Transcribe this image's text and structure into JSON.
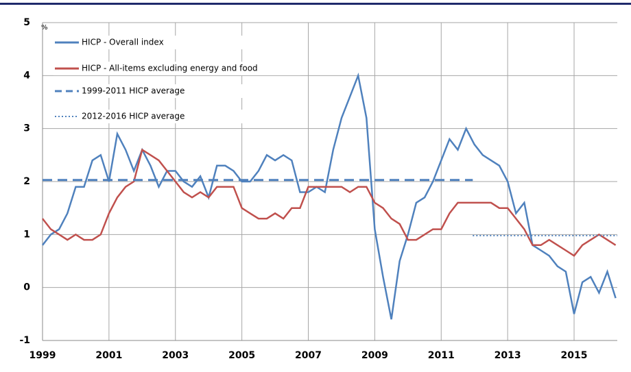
{
  "chart_data": {
    "type": "line",
    "y_label": "%",
    "xlim": [
      1999,
      2016.3
    ],
    "xticks": [
      1999,
      2001,
      2003,
      2005,
      2007,
      2009,
      2011,
      2013,
      2015
    ],
    "ylim": [
      -1,
      5
    ],
    "yticks": [
      -1,
      0,
      1,
      2,
      3,
      4,
      5
    ],
    "grid": true,
    "legend": "upper left",
    "series": [
      {
        "name": "HICP - Overall index",
        "color": "#4f81bd",
        "style": "solid",
        "x": [
          1999,
          1999.25,
          1999.5,
          1999.75,
          2000,
          2000.25,
          2000.5,
          2000.75,
          2001,
          2001.25,
          2001.5,
          2001.75,
          2002,
          2002.25,
          2002.5,
          2002.75,
          2003,
          2003.25,
          2003.5,
          2003.75,
          2004,
          2004.25,
          2004.5,
          2004.75,
          2005,
          2005.25,
          2005.5,
          2005.75,
          2006,
          2006.25,
          2006.5,
          2006.75,
          2007,
          2007.25,
          2007.5,
          2007.75,
          2008,
          2008.25,
          2008.5,
          2008.75,
          2009,
          2009.25,
          2009.5,
          2009.75,
          2010,
          2010.25,
          2010.5,
          2010.75,
          2011,
          2011.25,
          2011.5,
          2011.75,
          2012,
          2012.25,
          2012.5,
          2012.75,
          2013,
          2013.25,
          2013.5,
          2013.75,
          2014,
          2014.25,
          2014.5,
          2014.75,
          2015,
          2015.25,
          2015.5,
          2015.75,
          2016,
          2016.25
        ],
        "values": [
          0.8,
          1.0,
          1.1,
          1.4,
          1.9,
          1.9,
          2.4,
          2.5,
          2.0,
          2.9,
          2.6,
          2.2,
          2.6,
          2.3,
          1.9,
          2.2,
          2.2,
          2.0,
          1.9,
          2.1,
          1.7,
          2.3,
          2.3,
          2.2,
          2.0,
          2.0,
          2.2,
          2.5,
          2.4,
          2.5,
          2.4,
          1.8,
          1.8,
          1.9,
          1.8,
          2.6,
          3.2,
          3.6,
          4.0,
          3.2,
          1.1,
          0.2,
          -0.6,
          0.5,
          1.0,
          1.6,
          1.7,
          2.0,
          2.4,
          2.8,
          2.6,
          3.0,
          2.7,
          2.5,
          2.4,
          2.3,
          2.0,
          1.4,
          1.6,
          0.8,
          0.7,
          0.6,
          0.4,
          0.3,
          -0.5,
          0.1,
          0.2,
          -0.1,
          0.3,
          -0.2
        ]
      },
      {
        "name": "HICP - All-items excluding energy and food",
        "color": "#c0504d",
        "style": "solid",
        "x": [
          1999,
          1999.25,
          1999.5,
          1999.75,
          2000,
          2000.25,
          2000.5,
          2000.75,
          2001,
          2001.25,
          2001.5,
          2001.75,
          2002,
          2002.25,
          2002.5,
          2002.75,
          2003,
          2003.25,
          2003.5,
          2003.75,
          2004,
          2004.25,
          2004.5,
          2004.75,
          2005,
          2005.25,
          2005.5,
          2005.75,
          2006,
          2006.25,
          2006.5,
          2006.75,
          2007,
          2007.25,
          2007.5,
          2007.75,
          2008,
          2008.25,
          2008.5,
          2008.75,
          2009,
          2009.25,
          2009.5,
          2009.75,
          2010,
          2010.25,
          2010.5,
          2010.75,
          2011,
          2011.25,
          2011.5,
          2011.75,
          2012,
          2012.25,
          2012.5,
          2012.75,
          2013,
          2013.25,
          2013.5,
          2013.75,
          2014,
          2014.25,
          2014.5,
          2014.75,
          2015,
          2015.25,
          2015.5,
          2015.75,
          2016,
          2016.25
        ],
        "values": [
          1.3,
          1.1,
          1.0,
          0.9,
          1.0,
          0.9,
          0.9,
          1.0,
          1.4,
          1.7,
          1.9,
          2.0,
          2.6,
          2.5,
          2.4,
          2.2,
          2.0,
          1.8,
          1.7,
          1.8,
          1.7,
          1.9,
          1.9,
          1.9,
          1.5,
          1.4,
          1.3,
          1.3,
          1.4,
          1.3,
          1.5,
          1.5,
          1.9,
          1.9,
          1.9,
          1.9,
          1.9,
          1.8,
          1.9,
          1.9,
          1.6,
          1.5,
          1.3,
          1.2,
          0.9,
          0.9,
          1.0,
          1.1,
          1.1,
          1.4,
          1.6,
          1.6,
          1.6,
          1.6,
          1.6,
          1.5,
          1.5,
          1.3,
          1.1,
          0.8,
          0.8,
          0.9,
          0.8,
          0.7,
          0.6,
          0.8,
          0.9,
          1.0,
          0.9,
          0.8
        ]
      },
      {
        "name": "1999-2011 HICP average",
        "color": "#4f81bd",
        "style": "dashed",
        "x": [
          1999,
          2011.95
        ],
        "values": [
          2.03,
          2.03
        ]
      },
      {
        "name": "2012-2016 HICP average",
        "color": "#4f81bd",
        "style": "dotted",
        "x": [
          2011.95,
          2016.3
        ],
        "values": [
          0.98,
          0.98
        ]
      }
    ]
  }
}
